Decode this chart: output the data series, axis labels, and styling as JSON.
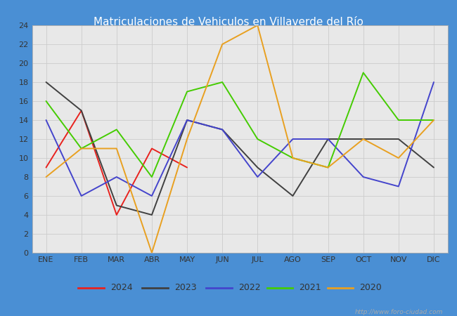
{
  "title": "Matriculaciones de Vehiculos en Villaverde del Río",
  "title_color": "white",
  "title_bg_color": "#4a8fd4",
  "months": [
    "ENE",
    "FEB",
    "MAR",
    "ABR",
    "MAY",
    "JUN",
    "JUL",
    "AGO",
    "SEP",
    "OCT",
    "NOV",
    "DIC"
  ],
  "series": {
    "2024": {
      "color": "#e8221e",
      "values": [
        9,
        15,
        4,
        11,
        9,
        null,
        null,
        null,
        null,
        null,
        null,
        null
      ]
    },
    "2023": {
      "color": "#404040",
      "values": [
        18,
        15,
        5,
        4,
        14,
        13,
        9,
        6,
        12,
        12,
        12,
        9
      ]
    },
    "2022": {
      "color": "#4444cc",
      "values": [
        14,
        6,
        8,
        6,
        14,
        13,
        8,
        12,
        12,
        8,
        7,
        18
      ]
    },
    "2021": {
      "color": "#44cc00",
      "values": [
        16,
        11,
        13,
        8,
        17,
        18,
        12,
        10,
        9,
        19,
        14,
        14
      ]
    },
    "2020": {
      "color": "#e8a020",
      "values": [
        8,
        11,
        11,
        0,
        12,
        22,
        24,
        10,
        9,
        12,
        10,
        14
      ]
    }
  },
  "ylim": [
    0,
    24
  ],
  "yticks": [
    0,
    2,
    4,
    6,
    8,
    10,
    12,
    14,
    16,
    18,
    20,
    22,
    24
  ],
  "grid_color": "#cccccc",
  "plot_bg_color": "#e8e8e8",
  "watermark": "http://www.foro-ciudad.com",
  "legend_order": [
    "2024",
    "2023",
    "2022",
    "2021",
    "2020"
  ],
  "figsize": [
    6.5,
    4.5
  ],
  "dpi": 100
}
